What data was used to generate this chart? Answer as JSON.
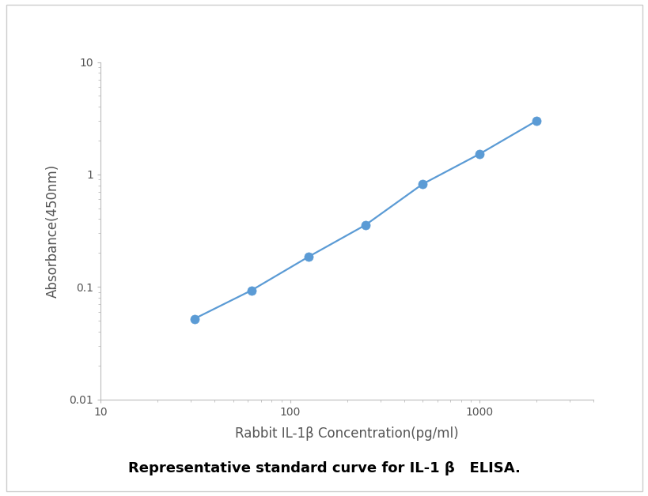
{
  "x_values": [
    31.25,
    62.5,
    125,
    250,
    500,
    1000,
    2000
  ],
  "y_values": [
    0.052,
    0.093,
    0.185,
    0.355,
    0.82,
    1.52,
    3.0
  ],
  "x_label": "Rabbit IL-1β Concentration(pg/ml)",
  "y_label": "Absorbance(450nm)",
  "x_lim": [
    10,
    4000
  ],
  "y_lim": [
    0.01,
    10
  ],
  "line_color": "#5B9BD5",
  "marker_color": "#5B9BD5",
  "marker_size": 8,
  "line_width": 1.6,
  "caption": "Representative standard curve for IL-1 β   ELISA.",
  "caption_fontsize": 13,
  "axis_label_fontsize": 12,
  "tick_fontsize": 10,
  "background_color": "#ffffff",
  "plot_background": "#ffffff",
  "spine_color": "#bbbbbb",
  "tick_color": "#bbbbbb",
  "label_color": "#555555"
}
